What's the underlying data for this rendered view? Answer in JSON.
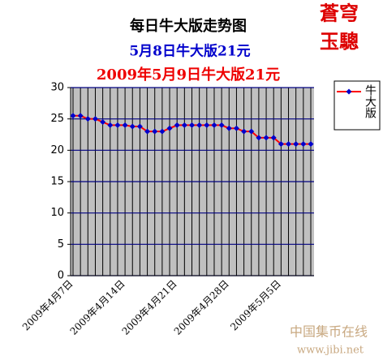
{
  "chart_data": {
    "type": "line",
    "title": "每日牛大版走势图",
    "subtitle": [
      "5月8日牛大版21元",
      "2009年5月9日牛大版21元"
    ],
    "categories": [
      "2009年4月7日",
      null,
      null,
      null,
      null,
      null,
      null,
      "2009年4月14日",
      null,
      null,
      null,
      null,
      null,
      null,
      "2009年4月21日",
      null,
      null,
      null,
      null,
      null,
      null,
      "2009年4月28日",
      null,
      null,
      null,
      null,
      null,
      null,
      "2009年5月5日",
      null,
      null,
      null,
      null
    ],
    "series": [
      {
        "name": "牛大版",
        "color": "#ff0000",
        "marker_color": "#0000cc",
        "values": [
          25.5,
          25.5,
          25,
          25,
          24.5,
          24,
          24,
          24,
          23.8,
          23.8,
          23,
          23,
          23,
          23.5,
          24,
          24,
          24,
          24,
          24,
          24,
          24,
          23.5,
          23.5,
          23,
          23,
          22,
          22,
          22,
          21,
          21,
          21,
          21,
          21
        ]
      }
    ],
    "ylim": [
      0,
      30
    ],
    "yticks": [
      0,
      5,
      10,
      15,
      20,
      25,
      30
    ],
    "grid": true
  },
  "logo": [
    "蒼穹",
    "玉驄"
  ],
  "watermark": {
    "name": "中国集币在线",
    "url": "www.jibi.net"
  }
}
